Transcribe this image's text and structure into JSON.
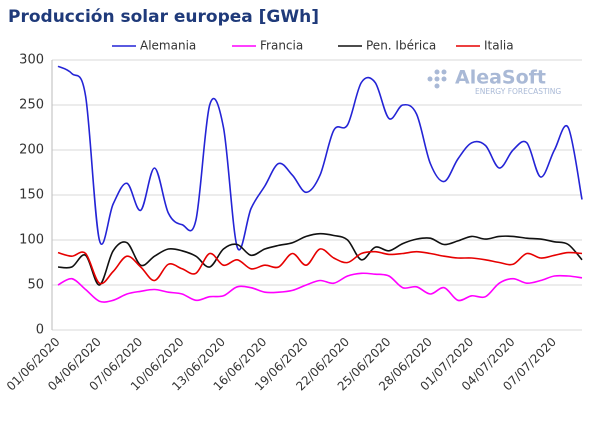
{
  "chart_data": {
    "type": "line",
    "title": "Producción solar europea [GWh]",
    "watermark": {
      "brand": "AleaSoft",
      "tagline": "ENERGY FORECASTING"
    },
    "categories": [
      "01/06/2020",
      null,
      null,
      "04/06/2020",
      null,
      null,
      "07/06/2020",
      null,
      null,
      "10/06/2020",
      null,
      null,
      "13/06/2020",
      null,
      null,
      "16/06/2020",
      null,
      null,
      "19/06/2020",
      null,
      null,
      "22/06/2020",
      null,
      null,
      "25/06/2020",
      null,
      null,
      "28/06/2020",
      null,
      null,
      "01/07/2020",
      null,
      null,
      "04/07/2020",
      null,
      null,
      "07/07/2020",
      null,
      null
    ],
    "series": [
      {
        "name": "Alemania",
        "color": "#2424d6",
        "values": [
          293,
          285,
          260,
          100,
          140,
          163,
          133,
          180,
          130,
          117,
          122,
          250,
          225,
          92,
          135,
          160,
          185,
          172,
          153,
          172,
          222,
          228,
          275,
          275,
          235,
          250,
          240,
          185,
          165,
          190,
          208,
          205,
          180,
          200,
          208,
          170,
          200,
          225,
          145
        ]
      },
      {
        "name": "Francia",
        "color": "#ff00ff",
        "values": [
          50,
          57,
          45,
          32,
          33,
          40,
          43,
          45,
          42,
          40,
          33,
          37,
          38,
          48,
          47,
          42,
          42,
          44,
          50,
          55,
          52,
          60,
          63,
          62,
          60,
          47,
          48,
          40,
          47,
          33,
          38,
          37,
          52,
          57,
          52,
          55,
          60,
          60,
          58
        ]
      },
      {
        "name": "Pen. Ibérica",
        "color": "#111111",
        "values": [
          70,
          70,
          83,
          50,
          88,
          97,
          72,
          82,
          90,
          88,
          82,
          70,
          90,
          95,
          83,
          90,
          94,
          97,
          104,
          107,
          105,
          100,
          78,
          92,
          88,
          96,
          101,
          102,
          95,
          99,
          104,
          101,
          104,
          104,
          102,
          101,
          98,
          95,
          78
        ]
      },
      {
        "name": "Italia",
        "color": "#e60000",
        "values": [
          86,
          82,
          85,
          52,
          65,
          82,
          70,
          55,
          73,
          68,
          63,
          85,
          72,
          78,
          68,
          72,
          70,
          85,
          72,
          90,
          80,
          75,
          85,
          87,
          84,
          85,
          87,
          85,
          82,
          80,
          80,
          78,
          75,
          73,
          85,
          80,
          83,
          86,
          85
        ]
      }
    ],
    "ylim": [
      0,
      300
    ],
    "yticks": [
      0,
      50,
      100,
      150,
      200,
      250,
      300
    ],
    "grid": true,
    "legend": "top"
  }
}
